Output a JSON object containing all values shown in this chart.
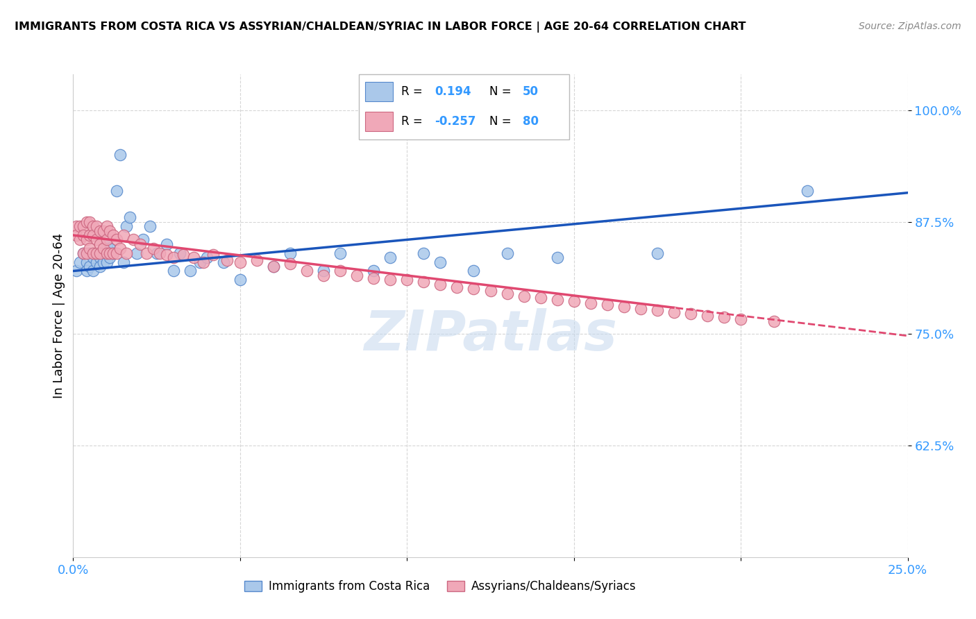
{
  "title": "IMMIGRANTS FROM COSTA RICA VS ASSYRIAN/CHALDEAN/SYRIAC IN LABOR FORCE | AGE 20-64 CORRELATION CHART",
  "source": "Source: ZipAtlas.com",
  "ylabel": "In Labor Force | Age 20-64",
  "xlim": [
    0.0,
    0.25
  ],
  "ylim": [
    0.5,
    1.04
  ],
  "blue_R": "0.194",
  "blue_N": "50",
  "pink_R": "-0.257",
  "pink_N": "80",
  "blue_color": "#aac8ea",
  "blue_edge": "#5588cc",
  "pink_color": "#f0a8b8",
  "pink_edge": "#cc6680",
  "trendline_blue": "#1a55bb",
  "trendline_pink": "#e04870",
  "legend_label_blue": "Immigrants from Costa Rica",
  "legend_label_pink": "Assyrians/Chaldeans/Syriacs",
  "watermark": "ZIPatlas",
  "accent_color": "#3399ff",
  "blue_x": [
    0.001,
    0.002,
    0.003,
    0.004,
    0.004,
    0.005,
    0.005,
    0.006,
    0.006,
    0.007,
    0.007,
    0.008,
    0.008,
    0.009,
    0.009,
    0.01,
    0.01,
    0.011,
    0.011,
    0.012,
    0.013,
    0.014,
    0.015,
    0.016,
    0.017,
    0.019,
    0.021,
    0.023,
    0.025,
    0.028,
    0.03,
    0.032,
    0.035,
    0.038,
    0.04,
    0.045,
    0.05,
    0.06,
    0.065,
    0.075,
    0.08,
    0.09,
    0.095,
    0.105,
    0.11,
    0.12,
    0.13,
    0.145,
    0.175,
    0.22
  ],
  "blue_y": [
    0.82,
    0.83,
    0.84,
    0.83,
    0.82,
    0.84,
    0.825,
    0.835,
    0.82,
    0.83,
    0.84,
    0.835,
    0.825,
    0.84,
    0.83,
    0.85,
    0.83,
    0.845,
    0.835,
    0.84,
    0.91,
    0.95,
    0.83,
    0.87,
    0.88,
    0.84,
    0.855,
    0.87,
    0.84,
    0.85,
    0.82,
    0.84,
    0.82,
    0.83,
    0.835,
    0.83,
    0.81,
    0.825,
    0.84,
    0.82,
    0.84,
    0.82,
    0.835,
    0.84,
    0.83,
    0.82,
    0.84,
    0.835,
    0.84,
    0.91
  ],
  "pink_x": [
    0.001,
    0.001,
    0.002,
    0.002,
    0.003,
    0.003,
    0.003,
    0.004,
    0.004,
    0.004,
    0.005,
    0.005,
    0.005,
    0.006,
    0.006,
    0.006,
    0.007,
    0.007,
    0.007,
    0.008,
    0.008,
    0.008,
    0.009,
    0.009,
    0.01,
    0.01,
    0.01,
    0.011,
    0.011,
    0.012,
    0.012,
    0.013,
    0.013,
    0.014,
    0.015,
    0.016,
    0.018,
    0.02,
    0.022,
    0.024,
    0.026,
    0.028,
    0.03,
    0.033,
    0.036,
    0.039,
    0.042,
    0.046,
    0.05,
    0.055,
    0.06,
    0.065,
    0.07,
    0.075,
    0.08,
    0.085,
    0.09,
    0.095,
    0.1,
    0.105,
    0.11,
    0.115,
    0.12,
    0.125,
    0.13,
    0.135,
    0.14,
    0.145,
    0.15,
    0.155,
    0.16,
    0.165,
    0.17,
    0.175,
    0.18,
    0.185,
    0.19,
    0.195,
    0.2,
    0.21
  ],
  "pink_y": [
    0.87,
    0.86,
    0.87,
    0.855,
    0.87,
    0.86,
    0.84,
    0.875,
    0.855,
    0.84,
    0.875,
    0.86,
    0.845,
    0.87,
    0.86,
    0.84,
    0.87,
    0.855,
    0.84,
    0.865,
    0.85,
    0.84,
    0.865,
    0.845,
    0.87,
    0.855,
    0.84,
    0.865,
    0.84,
    0.86,
    0.84,
    0.855,
    0.84,
    0.845,
    0.86,
    0.84,
    0.855,
    0.85,
    0.84,
    0.845,
    0.84,
    0.838,
    0.835,
    0.838,
    0.835,
    0.83,
    0.838,
    0.832,
    0.83,
    0.832,
    0.825,
    0.828,
    0.82,
    0.815,
    0.82,
    0.815,
    0.812,
    0.81,
    0.81,
    0.808,
    0.805,
    0.802,
    0.8,
    0.798,
    0.795,
    0.792,
    0.79,
    0.788,
    0.786,
    0.784,
    0.782,
    0.78,
    0.778,
    0.776,
    0.774,
    0.772,
    0.77,
    0.768,
    0.766,
    0.764
  ],
  "blue_intercept": 0.82,
  "blue_slope": 0.35,
  "pink_intercept": 0.86,
  "pink_slope": -0.45
}
